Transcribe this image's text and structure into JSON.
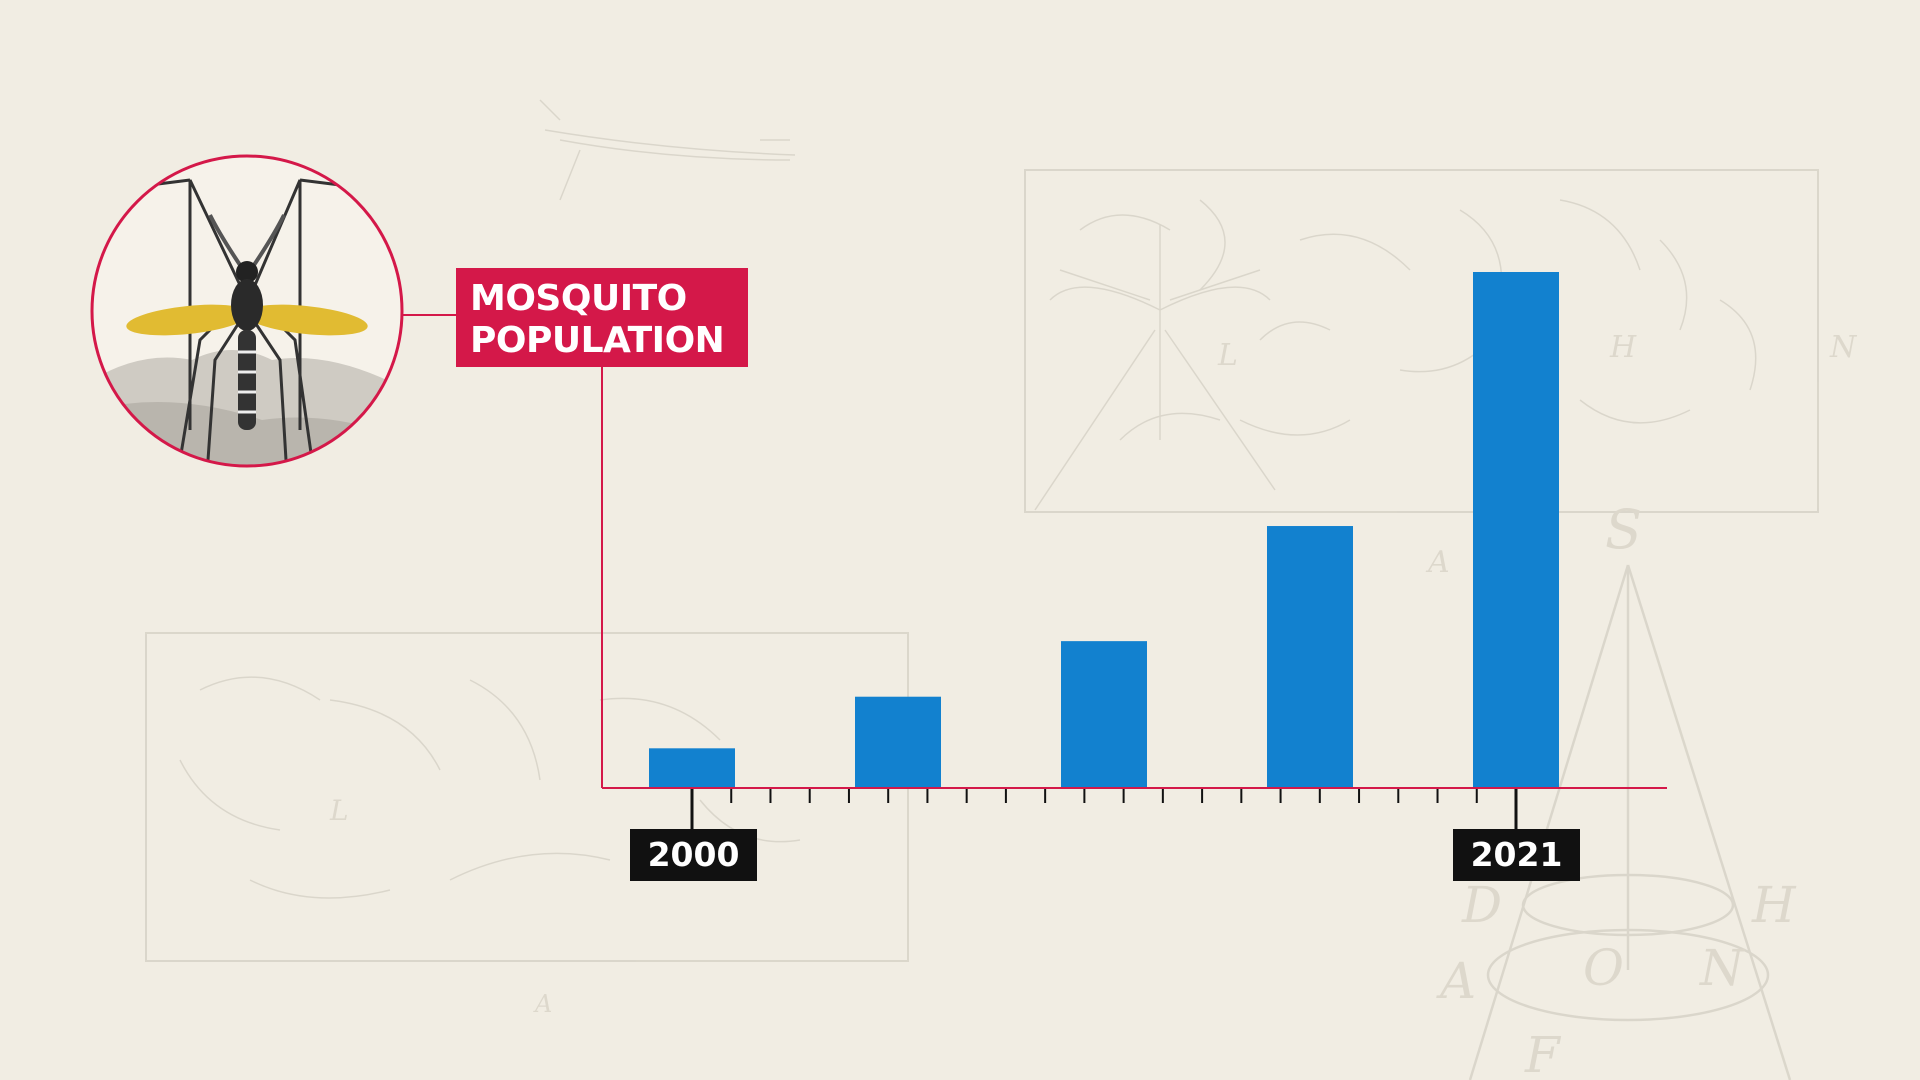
{
  "chart_data": {
    "type": "bar",
    "title_lines": [
      "MOSQUITO",
      "POPULATION"
    ],
    "categories": [
      "2000",
      "",
      "",
      "",
      "2021"
    ],
    "values": [
      10,
      23,
      37,
      66,
      130
    ],
    "ylim": [
      0,
      130
    ],
    "xlabel": "",
    "ylabel": "",
    "grid": false,
    "year_labels": {
      "start": "2000",
      "end": "2021"
    },
    "tick_count": 22
  },
  "colors": {
    "background": "#f1ede3",
    "bar": "#1281cf",
    "axis": "#d41849",
    "title_box": "#d41849",
    "label_box": "#111111"
  },
  "icons": [
    "mosquito-illustration-medallion",
    "background-engraving-sketches"
  ],
  "background_letters": {
    "top_panel": [
      "L",
      "H",
      "N",
      "A"
    ],
    "bottom_panel": [
      "L",
      "A"
    ],
    "cone": [
      "S",
      "D",
      "H",
      "A",
      "O",
      "N",
      "F"
    ]
  }
}
